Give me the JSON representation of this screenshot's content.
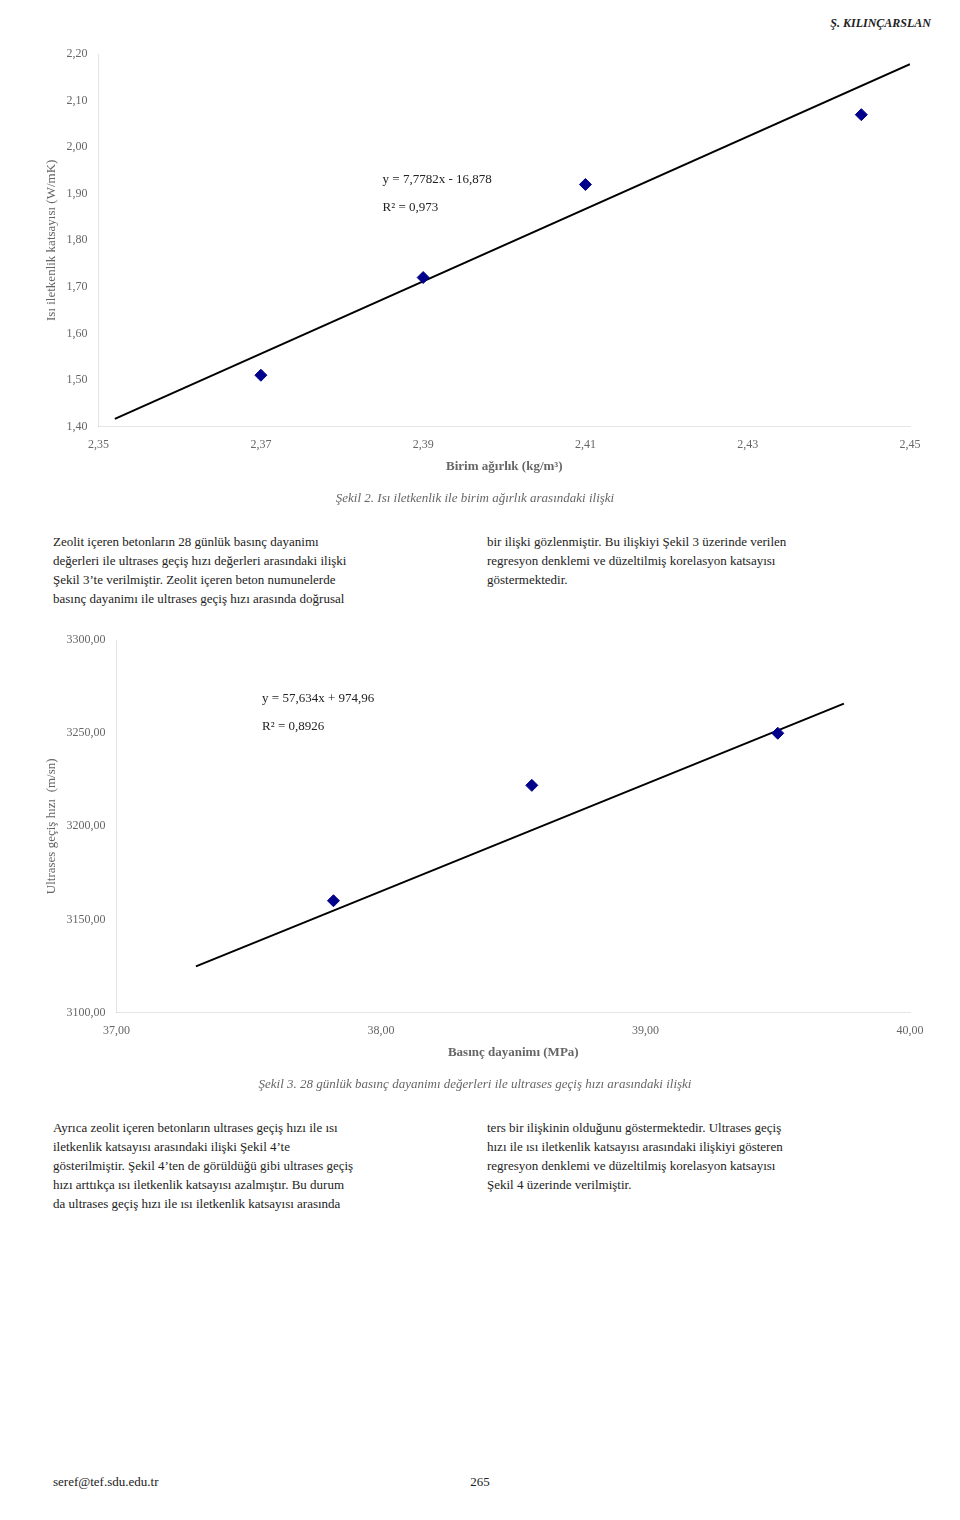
{
  "header": "Ş. KILINÇARSLAN",
  "chart_data": [
    {
      "type": "scatter",
      "title": "Şekil 2. Isı iletkenlik ile birim ağırlık arasındaki ilişki",
      "xlabel": "Birim ağırlık (kg/m³)",
      "ylabel": "Isı iletkenlik katsayısı (W/mK)",
      "xlim": [
        2.35,
        2.45
      ],
      "ylim": [
        1.4,
        2.2
      ],
      "xticks": [
        {
          "value": 2.35,
          "label": "2,35"
        },
        {
          "value": 2.37,
          "label": "2,37"
        },
        {
          "value": 2.39,
          "label": "2,39"
        },
        {
          "value": 2.41,
          "label": "2,41"
        },
        {
          "value": 2.43,
          "label": "2,43"
        },
        {
          "value": 2.45,
          "label": "2,45"
        }
      ],
      "yticks": [
        {
          "value": 1.4,
          "label": "1,40"
        },
        {
          "value": 1.5,
          "label": "1,50"
        },
        {
          "value": 1.6,
          "label": "1,60"
        },
        {
          "value": 1.7,
          "label": "1,70"
        },
        {
          "value": 1.8,
          "label": "1,80"
        },
        {
          "value": 1.9,
          "label": "1,90"
        },
        {
          "value": 2.0,
          "label": "2,00"
        },
        {
          "value": 2.1,
          "label": "2,10"
        },
        {
          "value": 2.2,
          "label": "2,20"
        }
      ],
      "grid": false,
      "legend": false,
      "series": [
        {
          "type": "line",
          "color": "#000000",
          "line_style": "solid",
          "x": [
            2.352,
            2.45
          ],
          "values": [
            1.4163264,
            2.17859
          ]
        },
        {
          "type": "scatter",
          "color": "#00008B",
          "marker": "diamond",
          "x": [
            2.37,
            2.39,
            2.41,
            2.444
          ],
          "values": [
            1.51,
            1.72,
            1.92,
            2.07
          ]
        }
      ],
      "annotations": [
        {
          "text": "y = 7,7782x - 16,878",
          "x": 2.385,
          "y": 1.945
        },
        {
          "text": "R² = 0,973",
          "x": 2.385,
          "y": 1.885
        }
      ]
    },
    {
      "type": "scatter",
      "title": "Şekil 3. 28 günlük basınç dayanimı değerleri ile ultrases geçiş hızı arasındaki ilişki",
      "xlabel": "Basınç dayanimı (MPa)",
      "ylabel": "Ultrases geçiş hızı  (m/sn)",
      "xlim": [
        37.0,
        40.0
      ],
      "ylim": [
        3100,
        3300
      ],
      "xticks": [
        {
          "value": 37.0,
          "label": "37,00"
        },
        {
          "value": 38.0,
          "label": "38,00"
        },
        {
          "value": 39.0,
          "label": "39,00"
        },
        {
          "value": 40.0,
          "label": "40,00"
        }
      ],
      "yticks": [
        {
          "value": 3100,
          "label": "3100,00"
        },
        {
          "value": 3150,
          "label": "3150,00"
        },
        {
          "value": 3200,
          "label": "3200,00"
        },
        {
          "value": 3250,
          "label": "3250,00"
        },
        {
          "value": 3300,
          "label": "3300,00"
        }
      ],
      "grid": false,
      "legend": false,
      "series": [
        {
          "type": "line",
          "color": "#000000",
          "line_style": "solid",
          "x": [
            37.3,
            39.75
          ],
          "values": [
            3124.7082,
            3265.9115
          ]
        },
        {
          "type": "scatter",
          "color": "#00008B",
          "marker": "diamond",
          "x": [
            37.82,
            38.57,
            39.5
          ],
          "values": [
            3160,
            3222,
            3250
          ]
        }
      ],
      "annotations": [
        {
          "text": "y = 57,634x + 974,96",
          "x": 37.55,
          "y": 3272
        },
        {
          "text": "R² = 0,8926",
          "x": 37.55,
          "y": 3257
        }
      ]
    }
  ],
  "paragraphs": [
    {
      "left": [
        "Zeolit içeren betonların 28 günlük basınç dayanimı",
        "değerleri ile ultrases geçiş hızı değerleri arasındaki ilişki",
        "Şekil 3’te verilmiştir. Zeolit içeren beton numunelerde",
        "basınç dayanimı ile ultrases geçiş hızı arasında doğrusal"
      ],
      "right": [
        "bir ilişki gözlenmiştir. Bu ilişkiyi Şekil 3 üzerinde verilen",
        "regresyon denklemi ve düzeltilmiş korelasyon katsayısı",
        "göstermektedir."
      ]
    },
    {
      "left": [
        "Ayrıca zeolit içeren betonların ultrases geçiş hızı ile ısı",
        "iletkenlik katsayısı arasındaki ilişki Şekil 4’te",
        "gösterilmiştir. Şekil 4’ten de görüldüğü gibi ultrases geçiş",
        "hızı arttıkça ısı iletkenlik katsayısı azalmıştır. Bu durum",
        "da ultrases geçiş hızı ile ısı iletkenlik katsayısı arasında"
      ],
      "right": [
        "ters bir ilişkinin olduğunu göstermektedir. Ultrases geçiş",
        "hızı ile ısı iletkenlik katsayısı arasındaki ilişkiyi gösteren",
        "regresyon denklemi ve düzeltilmiş korelasyon katsayısı",
        "Şekil 4 üzerinde verilmiştir."
      ]
    }
  ],
  "footer": {
    "left": "seref@tef.sdu.edu.tr",
    "center": "265"
  }
}
